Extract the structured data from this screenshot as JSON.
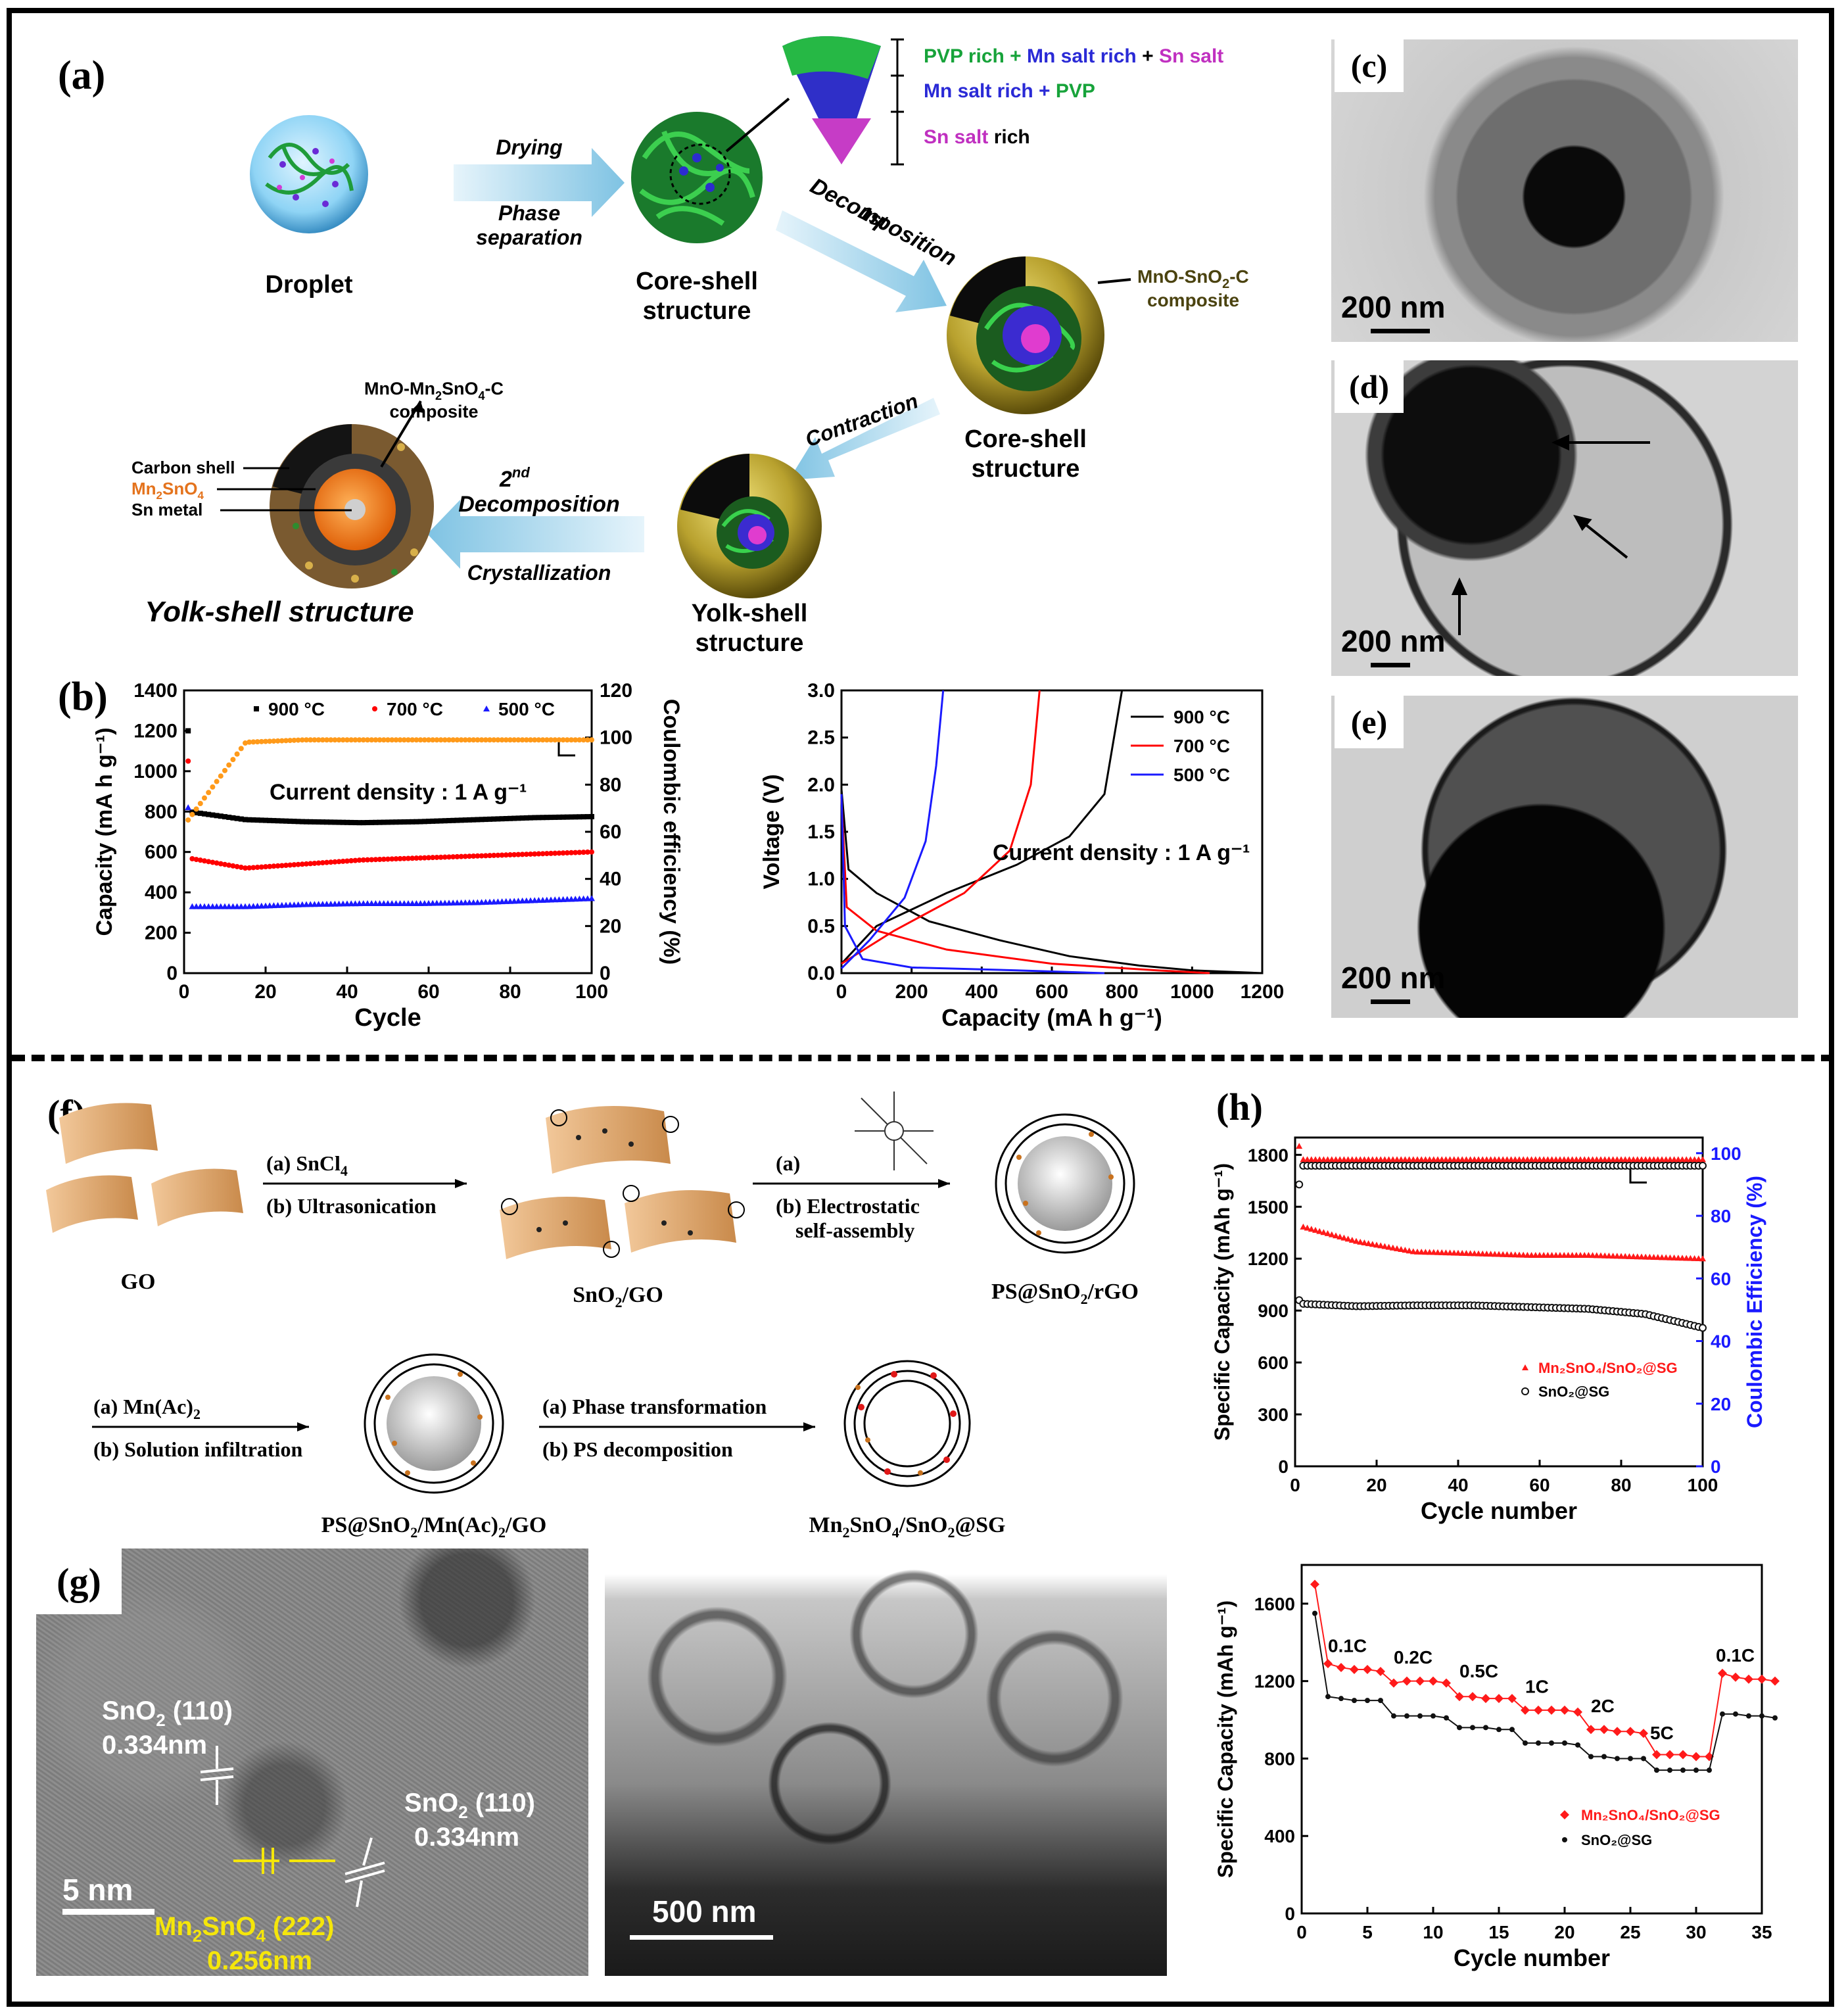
{
  "panels": {
    "a": "(a)",
    "b": "(b)",
    "c": "(c)",
    "d": "(d)",
    "e": "(e)",
    "f": "(f)",
    "g": "(g)",
    "h": "(h)"
  },
  "schematic_a": {
    "droplet": "Droplet",
    "drying": "Drying",
    "phase_sep_1": "Phase",
    "phase_sep_2": "separation",
    "coreshell1_1": "Core-shell",
    "coreshell1_2": "structure",
    "legend_1a": "PVP rich + ",
    "legend_1b": "Mn salt rich",
    "legend_1c": " + ",
    "legend_1d": "Sn salt",
    "legend_2a": "Mn salt rich + ",
    "legend_2b": "PVP",
    "legend_3a": "Sn salt",
    "legend_3b": " rich",
    "first_sup": "1st",
    "decomposition": "Decomposition",
    "mno_sno2_1": "MnO-SnO",
    "mno_sno2_2": "-C",
    "mno_sno2_3": "composite",
    "coreshell2_1": "Core-shell",
    "coreshell2_2": "structure",
    "contraction": "Contraction",
    "yolkshell_small_1": "Yolk-shell",
    "yolkshell_small_2": "structure",
    "second_sup": "nd",
    "second_2": "2",
    "decomposition2": "Decomposition",
    "crystallization": "Crystallization",
    "yolk_shell_big": "Yolk-shell structure",
    "mno_mn2sno4_1": "MnO-Mn",
    "mno_mn2sno4_2": "SnO",
    "mno_mn2sno4_3": "-C",
    "mno_mn2sno4_4": "composite",
    "carbon_shell": "Carbon shell",
    "mn2sno4_a": "Mn",
    "mn2sno4_b": "SnO",
    "sn_metal": "Sn metal"
  },
  "tem": {
    "c_scale": "200 nm",
    "d_scale": "200 nm",
    "e_scale": "200 nm"
  },
  "schematic_f": {
    "go": "GO",
    "step1_a": "(a) SnCl",
    "step1_b": "(b) Ultrasonication",
    "sno2go": "SnO",
    "sno2go_b": "/GO",
    "step2_a": "(a)",
    "step2_b": "(b) Electrostatic",
    "step2_c": "self-assembly",
    "psrgo_a": "PS@SnO",
    "psrgo_b": "/rGO",
    "step3_a": "(a) Mn(Ac)",
    "step3_b": "(b) Solution infiltration",
    "psmn_a": "PS@SnO",
    "psmn_b": "/Mn(Ac)",
    "psmn_c": "/GO",
    "step4_a": "(a) Phase transformation",
    "step4_b": "(b) PS decomposition",
    "final_a": "Mn",
    "final_b": "SnO",
    "final_c": "/SnO",
    "final_d": "@SG"
  },
  "hrtem": {
    "sno2_1a": "SnO",
    "sno2_1b": " (110)",
    "sno2_1c": "0.334nm",
    "sno2_2a": "SnO",
    "sno2_2b": " (110)",
    "sno2_2c": "0.334nm",
    "mn_a": "Mn",
    "mn_b": "SnO",
    "mn_c": " (222)",
    "mn_d": "0.256nm",
    "scale1": "5 nm",
    "scale2": "500 nm"
  },
  "chart_data": [
    {
      "type": "scatter",
      "title": "",
      "xlabel": "Cycle",
      "ylabel": "Capacity (mA h g⁻¹)",
      "y2label": "Coulombic efficiency (%)",
      "xlim": [
        0,
        100
      ],
      "ylim": [
        0,
        1400
      ],
      "y2lim": [
        0,
        120
      ],
      "xticks": [
        "0",
        "20",
        "40",
        "60",
        "80",
        "100"
      ],
      "yticks": [
        "0",
        "200",
        "400",
        "600",
        "800",
        "1000",
        "1200",
        "1400"
      ],
      "y2ticks": [
        "0",
        "20",
        "40",
        "60",
        "80",
        "100",
        "120"
      ],
      "annotation": "Current density : 1 A g⁻¹",
      "series": [
        {
          "name": "900 °C",
          "color": "#000000",
          "start": 1200,
          "values_approx": [
            800,
            760,
            750,
            745,
            750,
            760,
            770,
            775
          ]
        },
        {
          "name": "700 °C",
          "color": "#ff0000",
          "start": 1050,
          "values_approx": [
            570,
            520,
            540,
            560,
            570,
            580,
            590,
            600
          ]
        },
        {
          "name": "500 °C",
          "color": "#1a1aff",
          "start": 820,
          "values_approx": [
            330,
            330,
            340,
            345,
            345,
            350,
            360,
            370
          ]
        },
        {
          "name": "Coulombic efficiency",
          "color": "#ff9a1a",
          "axis": "y2",
          "values_approx": [
            65,
            98,
            99,
            99,
            99,
            99,
            99,
            99
          ]
        }
      ]
    },
    {
      "type": "line",
      "xlabel": "Capacity (mA h g⁻¹)",
      "ylabel": "Voltage (V)",
      "xlim": [
        0,
        1200
      ],
      "ylim": [
        0,
        3.0
      ],
      "xticks": [
        "0",
        "200",
        "400",
        "600",
        "800",
        "1000",
        "1200"
      ],
      "yticks": [
        "0.0",
        "0.5",
        "1.0",
        "1.5",
        "2.0",
        "2.5",
        "3.0"
      ],
      "annotation": "Current density : 1 A g⁻¹",
      "series": [
        {
          "name": "900 °C",
          "color": "#000000"
        },
        {
          "name": "700 °C",
          "color": "#ff0000"
        },
        {
          "name": "500 °C",
          "color": "#1a1aff"
        }
      ]
    },
    {
      "type": "scatter",
      "xlabel": "Cycle number",
      "ylabel": "Specific Capacity (mAh g⁻¹)",
      "y2label": "Coulombic Efficiency (%)",
      "xlim": [
        0,
        100
      ],
      "ylim": [
        0,
        1900
      ],
      "y2lim": [
        0,
        105
      ],
      "xticks": [
        "0",
        "20",
        "40",
        "60",
        "80",
        "100"
      ],
      "yticks": [
        "0",
        "300",
        "600",
        "900",
        "1200",
        "1500",
        "1800"
      ],
      "y2ticks": [
        "0",
        "20",
        "40",
        "60",
        "80",
        "100"
      ],
      "series": [
        {
          "name": "Mn₂SnO₄/SnO₂@SG",
          "color": "#ff1a1a",
          "start": 1850,
          "values_approx": [
            1390,
            1300,
            1240,
            1230,
            1220,
            1220,
            1210,
            1200
          ]
        },
        {
          "name": "SnO₂@SG",
          "color": "#111111",
          "start": 960,
          "values_approx": [
            940,
            925,
            930,
            930,
            920,
            910,
            880,
            800
          ]
        }
      ]
    },
    {
      "type": "scatter",
      "xlabel": "Cycle number",
      "ylabel": "Specific Capacity (mAh g⁻¹)",
      "xlim": [
        0,
        35
      ],
      "ylim": [
        0,
        1800
      ],
      "xticks": [
        "0",
        "5",
        "10",
        "15",
        "20",
        "25",
        "30",
        "35"
      ],
      "yticks": [
        "0",
        "400",
        "800",
        "1200",
        "1600"
      ],
      "rate_labels": [
        "0.1C",
        "0.2C",
        "0.5C",
        "1C",
        "2C",
        "5C",
        "0.1C"
      ],
      "series": [
        {
          "name": "Mn₂SnO₄/SnO₂@SG",
          "color": "#ff1a1a",
          "values": [
            1700,
            1290,
            1270,
            1260,
            1260,
            1250,
            1190,
            1200,
            1200,
            1200,
            1190,
            1120,
            1120,
            1110,
            1110,
            1110,
            1050,
            1050,
            1050,
            1050,
            1040,
            950,
            950,
            940,
            940,
            930,
            820,
            820,
            820,
            810,
            810,
            1240,
            1220,
            1210,
            1210,
            1200
          ]
        },
        {
          "name": "SnO₂@SG",
          "color": "#111111",
          "values": [
            1550,
            1120,
            1110,
            1100,
            1100,
            1100,
            1020,
            1020,
            1020,
            1020,
            1010,
            960,
            960,
            960,
            950,
            950,
            880,
            880,
            880,
            880,
            870,
            810,
            810,
            800,
            800,
            800,
            740,
            740,
            740,
            740,
            740,
            1030,
            1030,
            1020,
            1020,
            1010
          ]
        }
      ]
    }
  ]
}
